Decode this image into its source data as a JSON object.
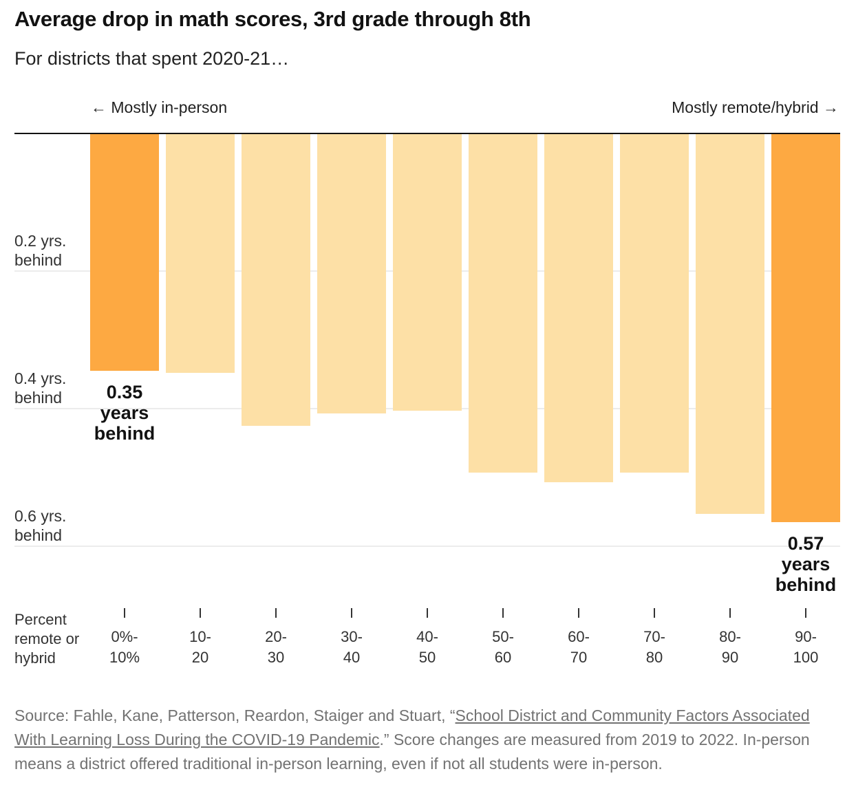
{
  "title": "Average drop in math scores, 3rd grade through 8th",
  "subtitle": "For districts that spent 2020-21…",
  "direction_labels": {
    "left": "← Mostly in-person",
    "right": "Mostly remote/hybrid →"
  },
  "colors": {
    "highlight": "#fda942",
    "normal": "#fde0a6",
    "axis": "#121212",
    "grid": "#e6e6e6",
    "source_text": "#727272"
  },
  "chart_data": {
    "type": "bar",
    "orientation": "downward",
    "categories": [
      "0%-\n10%",
      "10-\n20",
      "20-\n30",
      "30-\n40",
      "40-\n50",
      "50-\n60",
      "60-\n70",
      "70-\n80",
      "80-\n90",
      "90-\n100"
    ],
    "values": [
      0.345,
      0.348,
      0.425,
      0.407,
      0.403,
      0.493,
      0.507,
      0.493,
      0.553,
      0.565
    ],
    "highlighted": [
      0,
      9
    ],
    "x_axis_label": "Percent remote or hybrid",
    "y_ticks": [
      {
        "value": 0.2,
        "label": "0.2 yrs.\nbehind"
      },
      {
        "value": 0.4,
        "label": "0.4 yrs.\nbehind"
      },
      {
        "value": 0.6,
        "label": "0.6 yrs.\nbehind"
      }
    ],
    "ylim": [
      0,
      0.6
    ],
    "annotations": [
      {
        "bar": 0,
        "text": "0.35\nyears\nbehind"
      },
      {
        "bar": 9,
        "text": "0.57\nyears\nbehind"
      }
    ]
  },
  "source": {
    "prefix": "Source: Fahle, Kane, Patterson, Reardon, Staiger and Stuart, “",
    "link_text": "School District and Community Factors Associated With Learning Loss During the COVID-19 Pandemic",
    "suffix": ".” Score changes are measured from 2019 to 2022. In-person means a district offered traditional in-person learning, even if not all students were in-person."
  }
}
